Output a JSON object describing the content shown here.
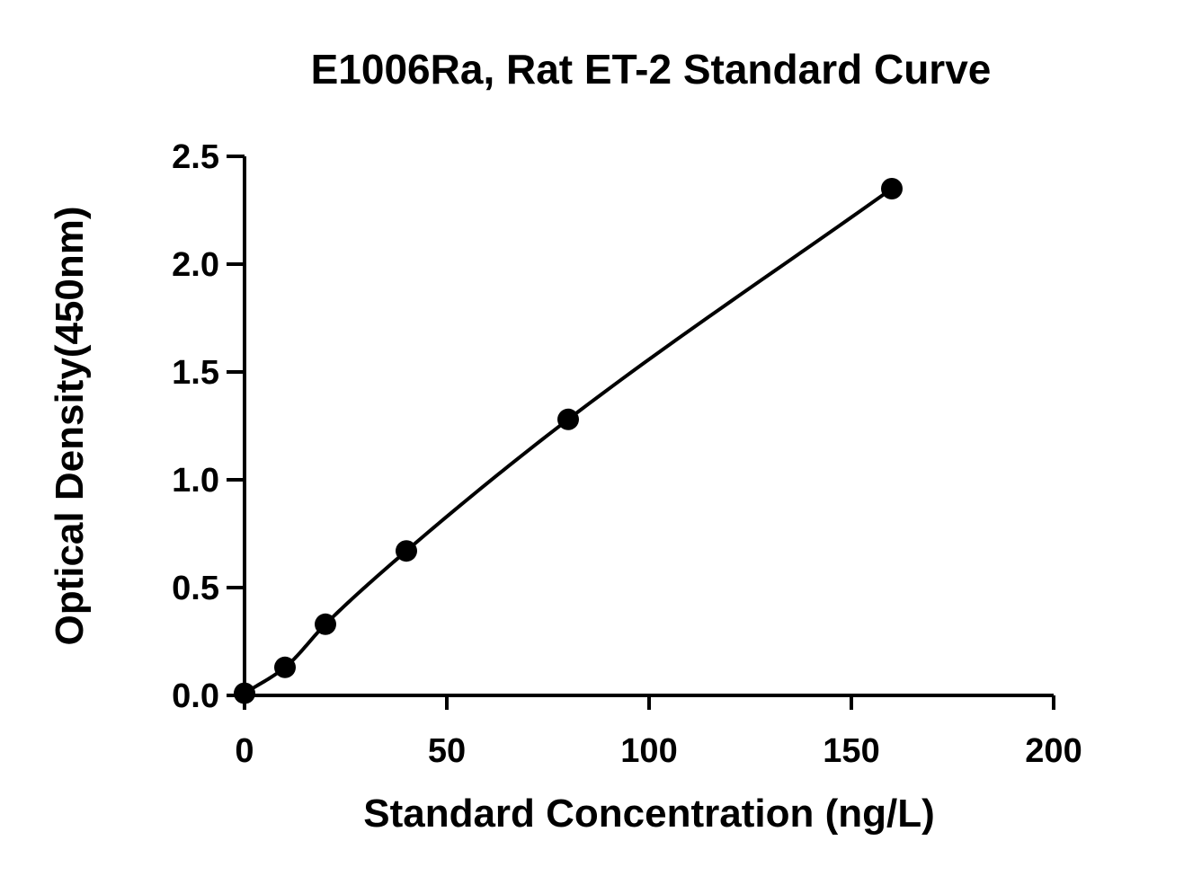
{
  "chart_data": {
    "type": "scatter",
    "title": "E1006Ra, Rat ET-2 Standard Curve",
    "xlabel": "Standard Concentration (ng/L)",
    "ylabel": "Optical Density(450nm)",
    "xlim": [
      0,
      200
    ],
    "ylim": [
      0,
      2.5
    ],
    "x_ticks": [
      0,
      50,
      100,
      150,
      200
    ],
    "y_ticks": [
      0.0,
      0.5,
      1.0,
      1.5,
      2.0,
      2.5
    ],
    "x_tick_labels": [
      "0",
      "50",
      "100",
      "150",
      "200"
    ],
    "y_tick_labels": [
      "0.0",
      "0.5",
      "1.0",
      "1.5",
      "2.0",
      "2.5"
    ],
    "grid": false,
    "legend": "none",
    "series": [
      {
        "x": [
          0,
          10,
          20,
          40,
          80,
          160
        ],
        "y": [
          0.01,
          0.13,
          0.33,
          0.67,
          1.28,
          2.35
        ],
        "marker": "filled-circle",
        "fit": "smooth-curve",
        "color": "#000000"
      }
    ]
  }
}
